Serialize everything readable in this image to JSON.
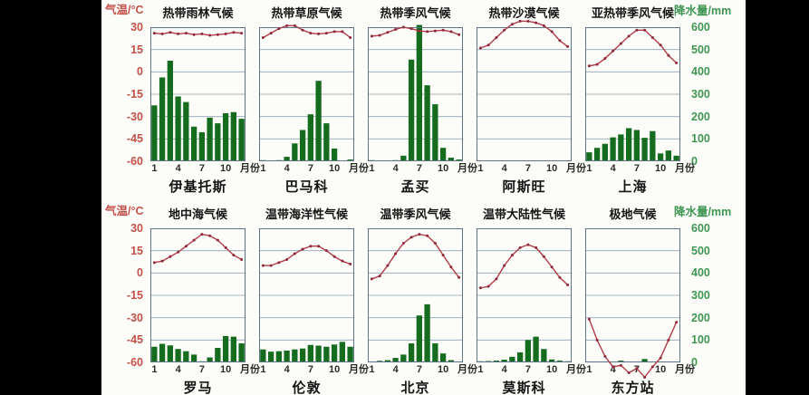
{
  "axes": {
    "temp_label": "气温/°C",
    "precip_label": "降水量/mm",
    "temp_ticks": [
      "30",
      "15",
      "0",
      "-15",
      "-30",
      "-45",
      "-60"
    ],
    "precip_ticks": [
      "600",
      "500",
      "400",
      "300",
      "200",
      "100",
      "0"
    ],
    "month_ticks": [
      "1",
      "4",
      "7",
      "10"
    ],
    "month_axis_label": "月份",
    "temp_axis_range": [
      -60,
      30
    ],
    "precip_axis_range": [
      0,
      600
    ]
  },
  "colors": {
    "bar": "#166c1e",
    "line": "#b23b49",
    "marker": "#8e2a3c",
    "temp_axis_text": "#c4504a",
    "precip_axis_text": "#3f9653",
    "grid": "#8fa3b5",
    "frame": "#5d7389",
    "title_text": "#141414",
    "background": "#fcfcf8",
    "letterbox": "#000000"
  },
  "chart_data": [
    {
      "type": "bar+line",
      "title": "热带雨林气候",
      "station": "伊基托斯",
      "months": [
        1,
        2,
        3,
        4,
        5,
        6,
        7,
        8,
        9,
        10,
        11,
        12
      ],
      "temperature_c": [
        26,
        25.5,
        26.5,
        25.5,
        26,
        25,
        25.5,
        24.5,
        25,
        25.5,
        26.5,
        26
      ],
      "precipitation_mm": [
        250,
        375,
        450,
        290,
        265,
        155,
        130,
        195,
        170,
        215,
        220,
        190
      ],
      "xlabel": "月份",
      "ylabel_left": "气温/°C",
      "ylabel_right": "降水量/mm",
      "ylim_left": [
        -60,
        30
      ],
      "ylim_right": [
        0,
        600
      ]
    },
    {
      "type": "bar+line",
      "title": "热带草原气候",
      "station": "巴马科",
      "months": [
        1,
        2,
        3,
        4,
        5,
        6,
        7,
        8,
        9,
        10,
        11,
        12
      ],
      "temperature_c": [
        23,
        26,
        29,
        31,
        31,
        28,
        26,
        25.5,
        26,
        27,
        27,
        23
      ],
      "precipitation_mm": [
        5,
        2,
        5,
        20,
        80,
        140,
        210,
        360,
        170,
        57,
        3,
        8
      ],
      "xlabel": "月份",
      "ylabel_left": "气温/°C",
      "ylabel_right": "降水量/mm",
      "ylim_left": [
        -60,
        30
      ],
      "ylim_right": [
        0,
        600
      ]
    },
    {
      "type": "bar+line",
      "title": "热带季风气候",
      "station": "孟买",
      "months": [
        1,
        2,
        3,
        4,
        5,
        6,
        7,
        8,
        9,
        10,
        11,
        12
      ],
      "temperature_c": [
        24,
        24.5,
        26.5,
        28.5,
        30,
        29,
        27.5,
        27,
        27.5,
        28,
        27,
        25
      ],
      "precipitation_mm": [
        5,
        3,
        3,
        5,
        25,
        455,
        610,
        340,
        255,
        60,
        16,
        8
      ],
      "xlabel": "月份",
      "ylabel_left": "气温/°C",
      "ylabel_right": "降水量/mm",
      "ylim_left": [
        -60,
        30
      ],
      "ylim_right": [
        0,
        600
      ]
    },
    {
      "type": "bar+line",
      "title": "热带沙漠气候",
      "station": "阿斯旺",
      "months": [
        1,
        2,
        3,
        4,
        5,
        6,
        7,
        8,
        9,
        10,
        11,
        12
      ],
      "temperature_c": [
        16,
        18,
        23,
        28,
        32,
        34,
        34,
        33,
        31,
        27,
        21,
        17
      ],
      "precipitation_mm": [
        0,
        0,
        0,
        2,
        0,
        0,
        0,
        0,
        2,
        0,
        0,
        0
      ],
      "xlabel": "月份",
      "ylabel_left": "气温/°C",
      "ylabel_right": "降水量/mm",
      "ylim_left": [
        -60,
        30
      ],
      "ylim_right": [
        0,
        600
      ]
    },
    {
      "type": "bar+line",
      "title": "亚热带季风气候",
      "station": "上海",
      "months": [
        1,
        2,
        3,
        4,
        5,
        6,
        7,
        8,
        9,
        10,
        11,
        12
      ],
      "temperature_c": [
        4,
        5,
        9,
        14,
        19,
        24,
        28,
        28,
        23,
        18,
        11,
        6
      ],
      "precipitation_mm": [
        40,
        60,
        78,
        107,
        120,
        148,
        140,
        105,
        135,
        35,
        48,
        25
      ],
      "xlabel": "月份",
      "ylabel_left": "气温/°C",
      "ylabel_right": "降水量/mm",
      "ylim_left": [
        -60,
        30
      ],
      "ylim_right": [
        0,
        600
      ]
    },
    {
      "type": "bar+line",
      "title": "地中海气候",
      "station": "罗马",
      "months": [
        1,
        2,
        3,
        4,
        5,
        6,
        7,
        8,
        9,
        10,
        11,
        12
      ],
      "temperature_c": [
        7,
        8,
        11,
        14,
        18,
        22,
        26,
        25,
        22,
        17,
        12,
        9
      ],
      "precipitation_mm": [
        70,
        83,
        76,
        60,
        50,
        35,
        5,
        22,
        65,
        118,
        115,
        85
      ],
      "xlabel": "月份",
      "ylabel_left": "气温/°C",
      "ylabel_right": "降水量/mm",
      "ylim_left": [
        -60,
        30
      ],
      "ylim_right": [
        0,
        600
      ]
    },
    {
      "type": "bar+line",
      "title": "温带海洋性气候",
      "station": "伦敦",
      "months": [
        1,
        2,
        3,
        4,
        5,
        6,
        7,
        8,
        9,
        10,
        11,
        12
      ],
      "temperature_c": [
        5,
        5,
        7,
        9,
        13,
        16,
        18,
        18,
        15,
        11,
        8,
        6
      ],
      "precipitation_mm": [
        58,
        48,
        50,
        53,
        58,
        62,
        78,
        75,
        70,
        80,
        92,
        70
      ],
      "xlabel": "月份",
      "ylabel_left": "气温/°C",
      "ylabel_right": "降水量/mm",
      "ylim_left": [
        -60,
        30
      ],
      "ylim_right": [
        0,
        600
      ]
    },
    {
      "type": "bar+line",
      "title": "温带季风气候",
      "station": "北京",
      "months": [
        1,
        2,
        3,
        4,
        5,
        6,
        7,
        8,
        9,
        10,
        11,
        12
      ],
      "temperature_c": [
        -4,
        -2,
        5,
        13,
        20,
        24,
        26,
        25,
        20,
        12,
        4,
        -3
      ],
      "precipitation_mm": [
        4,
        7,
        10,
        20,
        35,
        85,
        210,
        260,
        85,
        40,
        10,
        4
      ],
      "xlabel": "月份",
      "ylabel_left": "气温/°C",
      "ylabel_right": "降水量/mm",
      "ylim_left": [
        -60,
        30
      ],
      "ylim_right": [
        0,
        600
      ]
    },
    {
      "type": "bar+line",
      "title": "温带大陆性气候",
      "station": "莫斯科",
      "months": [
        1,
        2,
        3,
        4,
        5,
        6,
        7,
        8,
        9,
        10,
        11,
        12
      ],
      "temperature_c": [
        -10,
        -9,
        -4,
        5,
        12,
        17,
        19,
        17,
        11,
        4,
        -3,
        -8
      ],
      "precipitation_mm": [
        5,
        6,
        8,
        12,
        25,
        45,
        100,
        115,
        60,
        13,
        8,
        5
      ],
      "xlabel": "月份",
      "ylabel_left": "气温/°C",
      "ylabel_right": "降水量/mm",
      "ylim_left": [
        -60,
        30
      ],
      "ylim_right": [
        0,
        600
      ]
    },
    {
      "type": "bar+line",
      "title": "极地气候",
      "station": "东方站",
      "months": [
        1,
        2,
        3,
        4,
        5,
        6,
        7,
        8,
        9,
        10,
        11,
        12
      ],
      "temperature_c": [
        -31,
        -45,
        -56,
        -63,
        -62,
        -67,
        -64,
        -70,
        -63,
        -57,
        -45,
        -33
      ],
      "precipitation_mm": [
        3,
        2,
        2,
        3,
        8,
        3,
        3,
        15,
        4,
        3,
        2,
        2
      ],
      "xlabel": "月份",
      "ylabel_left": "气温/°C",
      "ylabel_right": "降水量/mm",
      "ylim_left": [
        -60,
        30
      ],
      "ylim_right": [
        0,
        600
      ]
    }
  ]
}
